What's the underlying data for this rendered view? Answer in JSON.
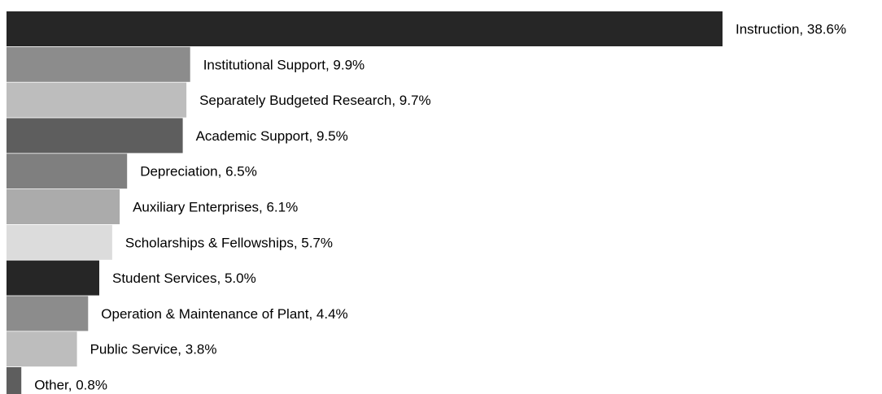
{
  "chart_data": {
    "type": "bar",
    "orientation": "horizontal",
    "title": "",
    "xlabel": "",
    "ylabel": "",
    "xlim": [
      0,
      38.6
    ],
    "grid": false,
    "legend": "none",
    "value_unit": "%",
    "bars": [
      {
        "category": "Instruction",
        "value": 38.6,
        "label": "Instruction, 38.6%",
        "color": "#262626"
      },
      {
        "category": "Institutional Support",
        "value": 9.9,
        "label": "Institutional Support, 9.9%",
        "color": "#8c8c8c"
      },
      {
        "category": "Separately Budgeted Research",
        "value": 9.7,
        "label": "Separately Budgeted Research, 9.7%",
        "color": "#bdbdbd"
      },
      {
        "category": "Academic Support",
        "value": 9.5,
        "label": "Academic Support, 9.5%",
        "color": "#5e5e5e"
      },
      {
        "category": "Depreciation",
        "value": 6.5,
        "label": "Depreciation, 6.5%",
        "color": "#7f7f7f"
      },
      {
        "category": "Auxiliary Enterprises",
        "value": 6.1,
        "label": "Auxiliary Enterprises, 6.1%",
        "color": "#ababab"
      },
      {
        "category": "Scholarships & Fellowships",
        "value": 5.7,
        "label": "Scholarships & Fellowships, 5.7%",
        "color": "#dcdcdc"
      },
      {
        "category": "Student Services",
        "value": 5.0,
        "label": "Student Services, 5.0%",
        "color": "#262626"
      },
      {
        "category": "Operation & Maintenance of Plant",
        "value": 4.4,
        "label": "Operation & Maintenance of Plant, 4.4%",
        "color": "#8c8c8c"
      },
      {
        "category": "Public Service",
        "value": 3.8,
        "label": "Public Service, 3.8%",
        "color": "#bdbdbd"
      },
      {
        "category": "Other",
        "value": 0.8,
        "label": "Other, 0.8%",
        "color": "#5e5e5e"
      }
    ]
  }
}
